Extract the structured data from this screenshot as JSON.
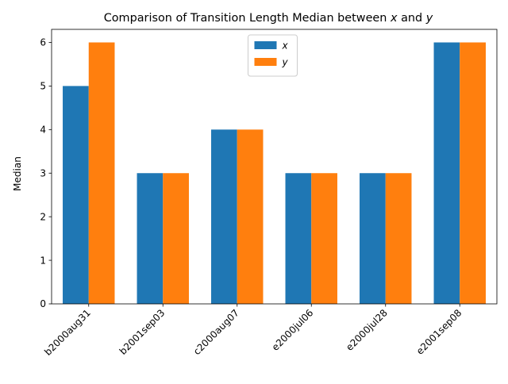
{
  "chart_data": {
    "type": "bar",
    "title": "Comparison of Transition Length Median between x and y",
    "title_parts": [
      {
        "text": "Comparison of Transition Length Median between ",
        "italic": false
      },
      {
        "text": "x",
        "italic": true
      },
      {
        "text": " and ",
        "italic": false
      },
      {
        "text": "y",
        "italic": true
      }
    ],
    "xlabel": "",
    "ylabel": "Median",
    "categories": [
      "b2000aug31",
      "b2001sep03",
      "c2000aug07",
      "e2000jul06",
      "e2000jul28",
      "e2001sep08"
    ],
    "series": [
      {
        "name": "x",
        "color": "#1f77b4",
        "values": [
          5,
          3,
          4,
          3,
          3,
          6
        ]
      },
      {
        "name": "y",
        "color": "#ff7f0e",
        "values": [
          6,
          3,
          4,
          3,
          3,
          6
        ]
      }
    ],
    "ylim": [
      0,
      6.3
    ],
    "yticks": [
      0,
      1,
      2,
      3,
      4,
      5,
      6
    ],
    "grid": false,
    "legend_position": "top-center",
    "xtick_rotation": 45
  }
}
